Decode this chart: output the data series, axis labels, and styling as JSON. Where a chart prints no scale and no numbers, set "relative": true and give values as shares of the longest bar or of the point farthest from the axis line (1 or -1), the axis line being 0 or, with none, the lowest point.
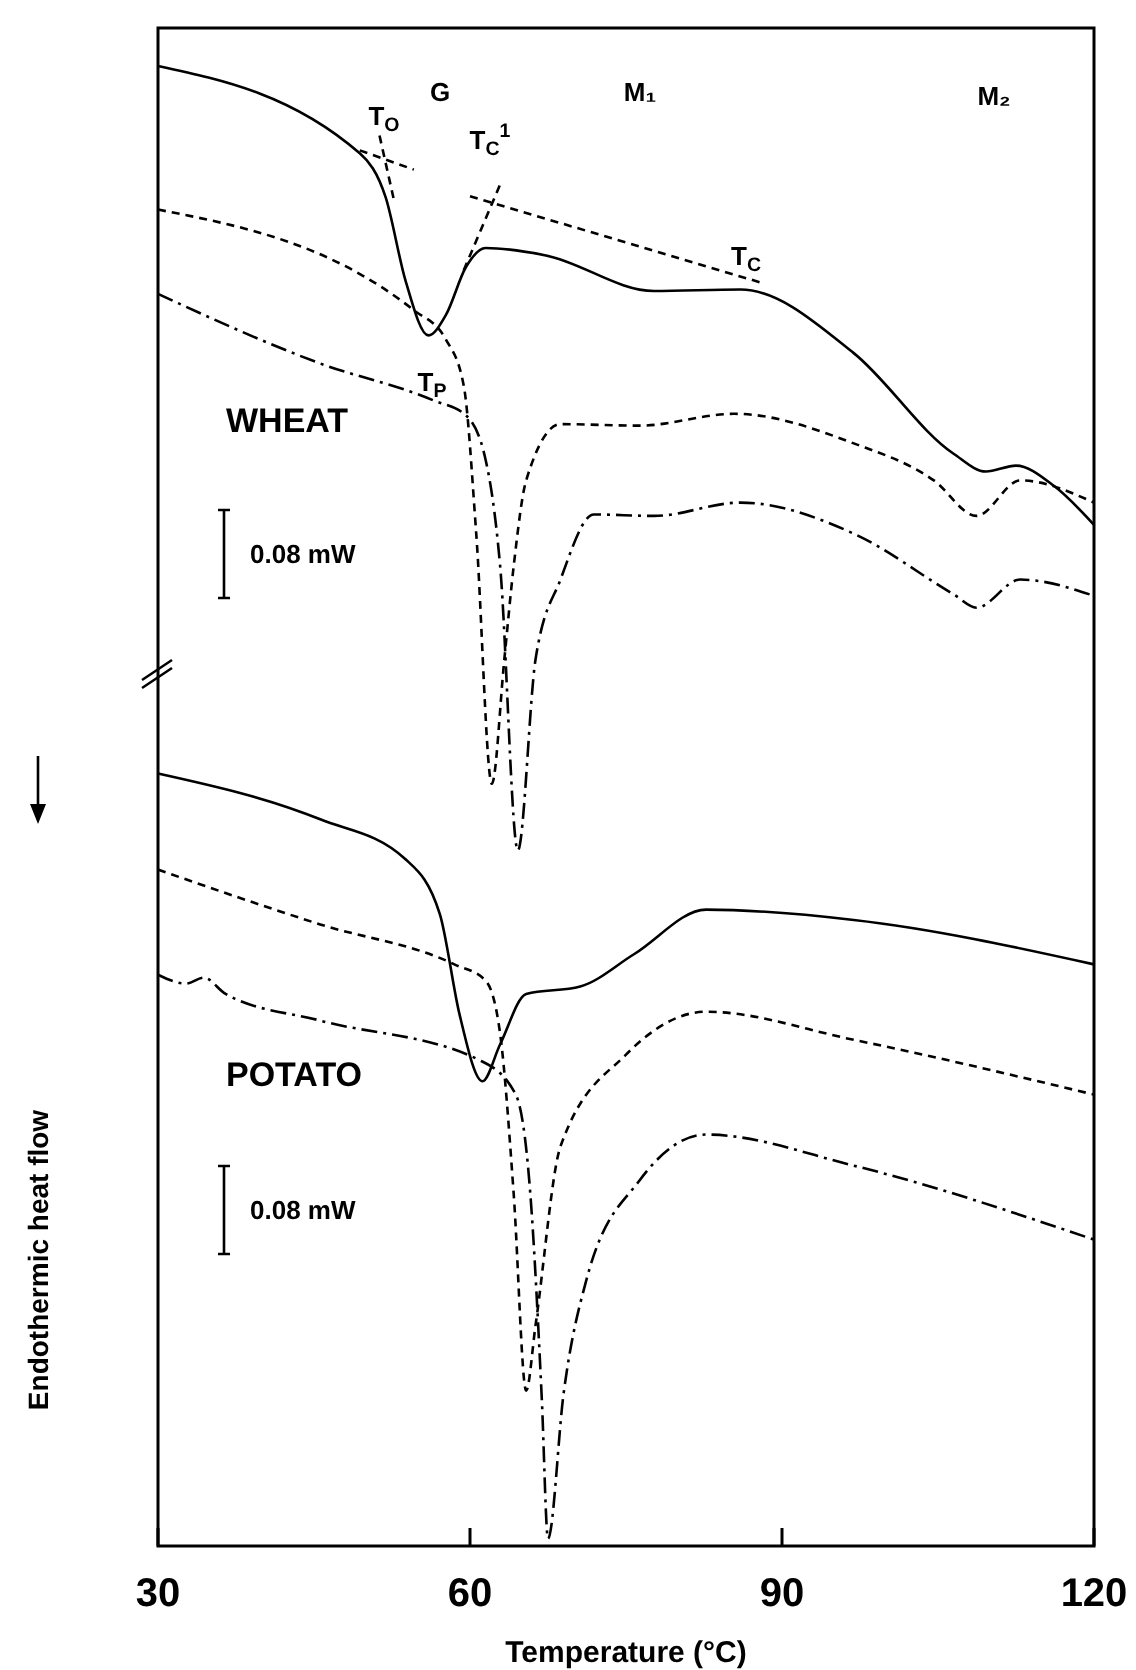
{
  "chart_data": {
    "type": "line",
    "relative": true,
    "xlabel": "Temperature (°C)",
    "ylabel": "Endothermic heat flow",
    "xlim": [
      30,
      120
    ],
    "xticks": [
      30,
      60,
      90,
      120
    ],
    "series": [
      {
        "color": "#000000",
        "line_style": "solid",
        "x": [
          30,
          49.4,
          51.9,
          53.8,
          56.0,
          57.7,
          59.6,
          61.5,
          67.3,
          77.7,
          86.0,
          96.9,
          106.5,
          109.6,
          112.5,
          116.2,
          120
        ],
        "values": [
          1.0,
          0.941,
          0.911,
          0.855,
          0.818,
          0.832,
          0.864,
          0.877,
          0.872,
          0.848,
          0.849,
          0.806,
          0.738,
          0.726,
          0.73,
          0.716,
          0.69
        ]
      },
      {
        "color": "#000000",
        "line_style": "dashed",
        "x": [
          30,
          54.6,
          57.7,
          59.4,
          60.6,
          62.1,
          63.3,
          64.2,
          65.4,
          68.7,
          76.3,
          85.4,
          96.9,
          104.6,
          108.7,
          112.9,
          120
        ],
        "values": [
          0.903,
          0.835,
          0.815,
          0.784,
          0.684,
          0.515,
          0.599,
          0.662,
          0.72,
          0.758,
          0.757,
          0.765,
          0.745,
          0.72,
          0.696,
          0.72,
          0.705
        ]
      },
      {
        "color": "#000000",
        "line_style": "dashdot",
        "x": [
          30,
          45.6,
          56.5,
          59.6,
          61.5,
          62.9,
          64.6,
          66.3,
          68.7,
          71.9,
          77.7,
          86.0,
          96.9,
          106.5,
          108.7,
          112.9,
          120
        ],
        "values": [
          0.846,
          0.799,
          0.774,
          0.764,
          0.734,
          0.662,
          0.47,
          0.599,
          0.653,
          0.697,
          0.696,
          0.705,
          0.684,
          0.643,
          0.634,
          0.653,
          0.642
        ]
      },
      {
        "color": "#000000",
        "line_style": "solid",
        "x": [
          30,
          45.6,
          53.8,
          57.1,
          59.0,
          61.2,
          62.9,
          65.4,
          70.6,
          75.8,
          82.7,
          96.9,
          120
        ],
        "values": [
          0.522,
          0.491,
          0.464,
          0.427,
          0.359,
          0.314,
          0.339,
          0.373,
          0.378,
          0.4,
          0.43,
          0.423,
          0.393
        ]
      },
      {
        "color": "#000000",
        "line_style": "dashed",
        "x": [
          30,
          45.6,
          58.5,
          61.5,
          62.9,
          64.2,
          65.4,
          66.3,
          68.7,
          75.0,
          82.7,
          96.9,
          120
        ],
        "values": [
          0.457,
          0.42,
          0.393,
          0.382,
          0.346,
          0.238,
          0.105,
          0.149,
          0.27,
          0.332,
          0.361,
          0.342,
          0.305
        ]
      },
      {
        "color": "#000000",
        "line_style": "dashdot",
        "x": [
          30,
          32.7,
          34.4,
          36.5,
          45.6,
          61.0,
          64.4,
          65.8,
          66.9,
          67.5,
          69.0,
          71.2,
          76.3,
          82.7,
          96.9,
          120
        ],
        "values": [
          0.386,
          0.38,
          0.384,
          0.373,
          0.355,
          0.328,
          0.305,
          0.238,
          0.1,
          0.005,
          0.103,
          0.18,
          0.247,
          0.278,
          0.257,
          0.207
        ]
      },
      {
        "color": "#000000",
        "line_style": "dashed",
        "x": [
          49.4,
          54.6
        ],
        "values": [
          0.943,
          0.93
        ]
      },
      {
        "color": "#000000",
        "line_style": "dashed",
        "x": [
          51.3,
          52.7
        ],
        "values": [
          0.953,
          0.909
        ]
      },
      {
        "color": "#000000",
        "line_style": "dashed",
        "x": [
          59.4,
          62.9
        ],
        "values": [
          0.862,
          0.92
        ]
      },
      {
        "color": "#000000",
        "line_style": "dashed",
        "x": [
          60.0,
          88.3
        ],
        "values": [
          0.912,
          0.853
        ]
      }
    ],
    "annotations": [
      "T$_{O}$",
      "G",
      "T$_{C}$$^{1}$",
      "M₁",
      "M₂",
      "T$_{C}$",
      "T$_{P}$",
      "WHEAT",
      "0.08 mW",
      "POTATO",
      "0.08 mW"
    ]
  }
}
